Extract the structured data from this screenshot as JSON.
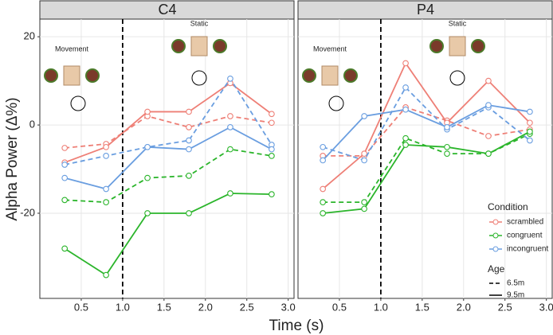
{
  "chart_data": [
    {
      "type": "line",
      "title": "C4",
      "ylabel": "Alpha Power (Δ%)",
      "xlabel": "Time (s)",
      "annotations": [
        "Movement",
        "Static"
      ],
      "x": [
        0.3,
        0.8,
        1.3,
        1.8,
        2.3,
        2.8
      ],
      "xlim": [
        0.0,
        3.08
      ],
      "ylim": [
        -39.3,
        24
      ],
      "xticks": [
        0.5,
        {
          "value": 1.0,
          "label": "1.0"
        },
        1.5,
        {
          "value": 2.0,
          "label": "2.0"
        },
        2.5,
        {
          "value": 3.0,
          "label": "3.0"
        }
      ],
      "yticks": [
        -20,
        0,
        20
      ],
      "vline": 1.0,
      "grid": true,
      "series": [
        {
          "name": "scrambled",
          "age": "6.5m",
          "linestyle": "dashed",
          "color": "#ee7f76",
          "values": [
            -5.2,
            -4.3,
            2.0,
            -0.5,
            2.0,
            0.5
          ]
        },
        {
          "name": "scrambled",
          "age": "9.5m",
          "linestyle": "solid",
          "color": "#ee7f76",
          "values": [
            -8.5,
            -5,
            3,
            3,
            9.5,
            2.5
          ]
        },
        {
          "name": "congruent",
          "age": "6.5m",
          "linestyle": "dashed",
          "color": "#2bb52b",
          "values": [
            -17,
            -17.5,
            -12,
            -11.5,
            -5.5,
            -7
          ]
        },
        {
          "name": "congruent",
          "age": "9.5m",
          "linestyle": "solid",
          "color": "#2bb52b",
          "values": [
            -28,
            -34,
            -20,
            -20,
            -15.5,
            -15.7
          ]
        },
        {
          "name": "incongruent",
          "age": "6.5m",
          "linestyle": "dashed",
          "color": "#6a9ee0",
          "values": [
            -9,
            -7,
            -5,
            -3.5,
            10.5,
            -4.5
          ]
        },
        {
          "name": "incongruent",
          "age": "9.5m",
          "linestyle": "solid",
          "color": "#6a9ee0",
          "values": [
            -12,
            -14.5,
            -5,
            -5.5,
            -0.5,
            -5.5
          ]
        }
      ]
    },
    {
      "type": "line",
      "title": "P4",
      "annotations": [
        "Movement",
        "Static"
      ],
      "x": [
        0.3,
        0.8,
        1.3,
        1.8,
        2.3,
        2.8
      ],
      "xlim": [
        0.0,
        3.08
      ],
      "ylim": [
        -39.3,
        24
      ],
      "xticks": [
        0.5,
        {
          "value": 1.0,
          "label": "1.0"
        },
        1.5,
        {
          "value": 2.0,
          "label": "2.0"
        },
        2.5,
        {
          "value": 3.0,
          "label": "3.0"
        }
      ],
      "yticks": [
        -20,
        0,
        20
      ],
      "vline": 1.0,
      "grid": true,
      "legend": {
        "title": "Condition",
        "age_title": "Age",
        "ages": [
          "6.5m",
          "9.5m"
        ]
      },
      "series": [
        {
          "name": "scrambled",
          "age": "6.5m",
          "linestyle": "dashed",
          "color": "#ee7f76",
          "values": [
            -7,
            -7,
            4,
            1,
            -2.5,
            -1
          ]
        },
        {
          "name": "scrambled",
          "age": "9.5m",
          "linestyle": "solid",
          "color": "#ee7f76",
          "values": [
            -14.5,
            -6.5,
            14,
            0.5,
            10,
            0.5
          ]
        },
        {
          "name": "congruent",
          "age": "6.5m",
          "linestyle": "dashed",
          "color": "#2bb52b",
          "values": [
            -17.5,
            -17.5,
            -3,
            -6.5,
            -6.5,
            -2
          ]
        },
        {
          "name": "congruent",
          "age": "9.5m",
          "linestyle": "solid",
          "color": "#2bb52b",
          "values": [
            -20,
            -19,
            -4.5,
            -5,
            -6.5,
            -1.5
          ]
        },
        {
          "name": "incongruent",
          "age": "6.5m",
          "linestyle": "dashed",
          "color": "#6a9ee0",
          "values": [
            -5,
            -8,
            8.5,
            -1,
            4,
            -3.5
          ]
        },
        {
          "name": "incongruent",
          "age": "9.5m",
          "linestyle": "solid",
          "color": "#6a9ee0",
          "values": [
            -8,
            2,
            3.5,
            -0.5,
            4.5,
            3
          ]
        }
      ]
    }
  ]
}
